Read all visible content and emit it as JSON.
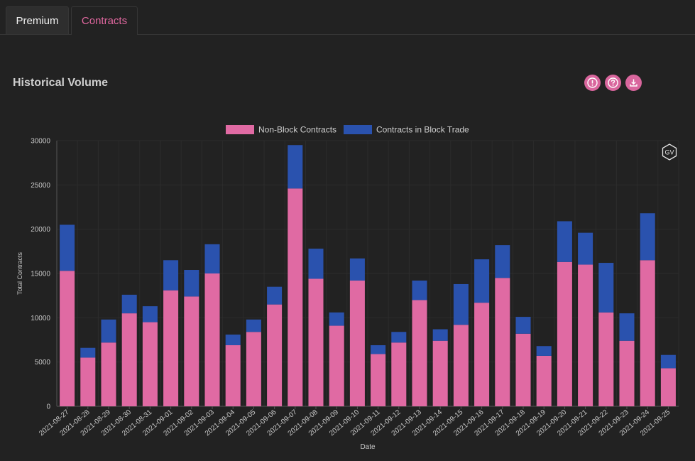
{
  "tabs": [
    {
      "label": "Premium"
    },
    {
      "label": "Contracts"
    }
  ],
  "section": {
    "title": "Historical Volume"
  },
  "toolbar": {
    "icons": [
      "info-icon",
      "help-icon",
      "download-icon"
    ]
  },
  "colors": {
    "accent": "#e0679f",
    "non_block": "#e06aa3",
    "block": "#2a52ae",
    "background": "#222222"
  },
  "chart_data": {
    "type": "bar",
    "stacked": true,
    "xlabel": "Date",
    "ylabel": "Total Contracts",
    "ylim": [
      0,
      30000
    ],
    "yticks": [
      0,
      5000,
      10000,
      15000,
      20000,
      25000,
      30000
    ],
    "legend": "top-center",
    "grid": true,
    "badge": "GV",
    "categories": [
      "2021-08-27",
      "2021-08-28",
      "2021-08-29",
      "2021-08-30",
      "2021-08-31",
      "2021-09-01",
      "2021-09-02",
      "2021-09-03",
      "2021-09-04",
      "2021-09-05",
      "2021-09-06",
      "2021-09-07",
      "2021-09-08",
      "2021-09-09",
      "2021-09-10",
      "2021-09-11",
      "2021-09-12",
      "2021-09-13",
      "2021-09-14",
      "2021-09-15",
      "2021-09-16",
      "2021-09-17",
      "2021-09-18",
      "2021-09-19",
      "2021-09-20",
      "2021-09-21",
      "2021-09-22",
      "2021-09-23",
      "2021-09-24",
      "2021-09-25"
    ],
    "series": [
      {
        "name": "Non-Block Contracts",
        "values": [
          15300,
          5500,
          7200,
          10500,
          9500,
          13100,
          12400,
          15000,
          6900,
          8400,
          11500,
          24600,
          14400,
          9100,
          14200,
          5900,
          7200,
          12000,
          7400,
          9200,
          11700,
          14500,
          8200,
          5700,
          16300,
          16000,
          10600,
          7400,
          16500,
          4300
        ]
      },
      {
        "name": "Contracts in Block Trade",
        "values": [
          5200,
          1100,
          2600,
          2100,
          1800,
          3400,
          3000,
          3300,
          1200,
          1400,
          2000,
          4900,
          3400,
          1500,
          2500,
          1000,
          1200,
          2200,
          1300,
          4600,
          4900,
          3700,
          1900,
          1100,
          4600,
          3600,
          5600,
          3100,
          5300,
          1500
        ]
      }
    ]
  }
}
